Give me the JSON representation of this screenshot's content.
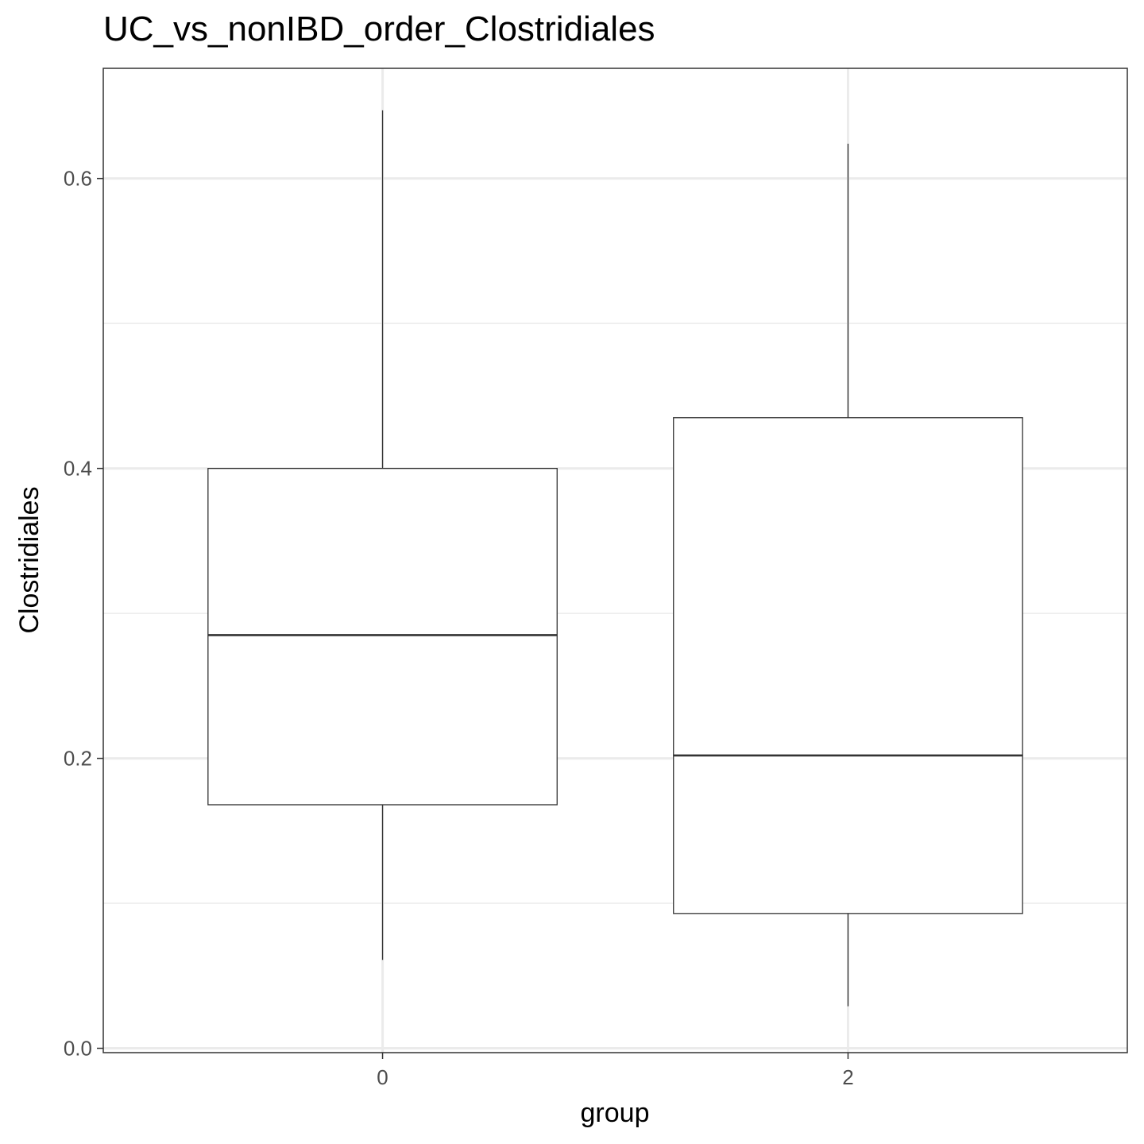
{
  "chart_data": {
    "type": "boxplot",
    "title": "UC_vs_nonIBD_order_Clostridiales",
    "xlabel": "group",
    "ylabel": "Clostridiales",
    "ylim": [
      -0.003,
      0.676
    ],
    "y_ticks": [
      0.0,
      0.2,
      0.4,
      0.6
    ],
    "y_tick_labels": [
      "0.0",
      "0.2",
      "0.4",
      "0.6"
    ],
    "y_minor_gridlines": [
      0.1,
      0.3,
      0.5
    ],
    "grid": true,
    "categories": [
      "0",
      "2"
    ],
    "boxes": [
      {
        "group": "0",
        "whisker_low": 0.061,
        "q1": 0.168,
        "median": 0.285,
        "q3": 0.4,
        "whisker_high": 0.647
      },
      {
        "group": "2",
        "whisker_low": 0.029,
        "q1": 0.093,
        "median": 0.202,
        "q3": 0.435,
        "whisker_high": 0.624
      }
    ],
    "colors": {
      "box_fill": "#ffffff",
      "box_stroke": "#333333",
      "grid": "#ebebeb",
      "panel_border": "#333333"
    }
  }
}
